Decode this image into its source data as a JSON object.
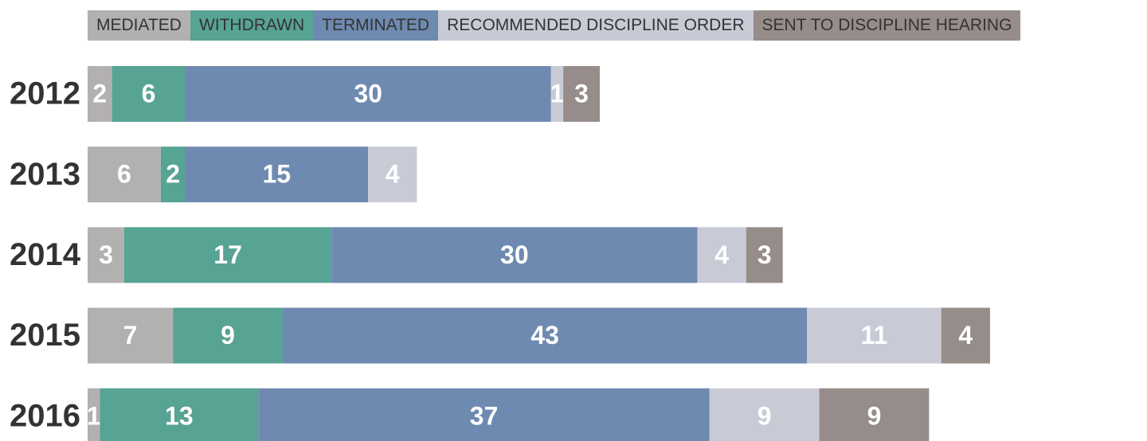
{
  "chart_data": {
    "type": "stacked-bar-horizontal",
    "categories": [
      "2012",
      "2013",
      "2014",
      "2015",
      "2016"
    ],
    "series": [
      {
        "name": "MEDIATED",
        "color": "#b3b0b0",
        "values": [
          2,
          6,
          3,
          7,
          1
        ]
      },
      {
        "name": "WITHDRAWN",
        "color": "#57a394",
        "values": [
          6,
          2,
          17,
          9,
          13
        ]
      },
      {
        "name": "TERMINATED",
        "color": "#6f8ab0",
        "values": [
          30,
          15,
          30,
          43,
          37
        ]
      },
      {
        "name": "RECOMMENDED DISCIPLINE ORDER",
        "color": "#c8cbd6",
        "values": [
          1,
          4,
          4,
          11,
          9
        ]
      },
      {
        "name": "SENT TO DISCIPLINE HEARING",
        "color": "#968c8a",
        "values": [
          3,
          null,
          3,
          4,
          9
        ]
      }
    ]
  }
}
